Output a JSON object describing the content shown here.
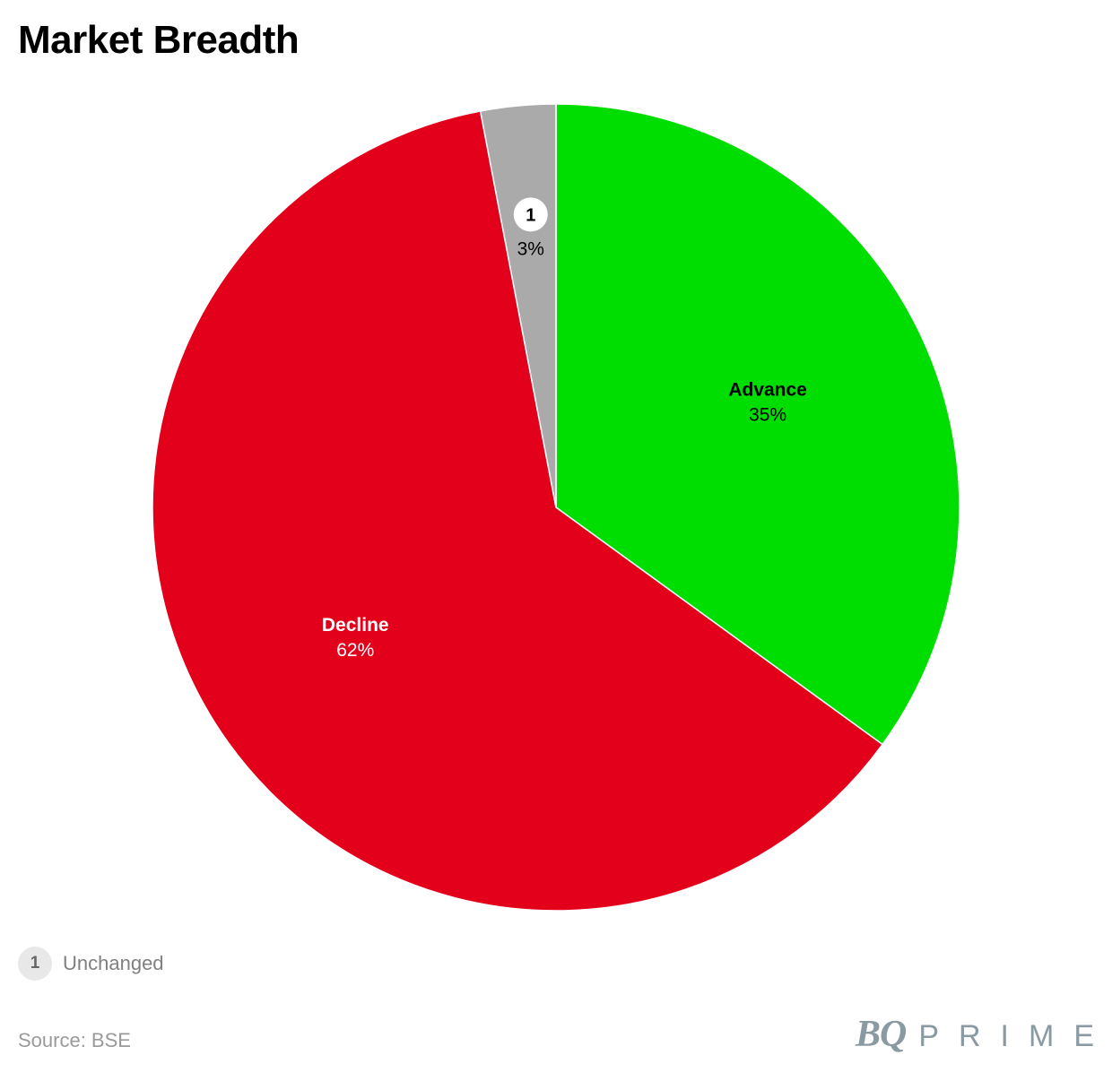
{
  "title": "Market Breadth",
  "chart_data": {
    "type": "pie",
    "title": "Market Breadth",
    "start_angle_deg": 0,
    "direction": "clockwise",
    "slices": [
      {
        "name": "Advance",
        "value": 35,
        "value_label": "35%",
        "color": "#00dd00",
        "label_color": "#000000",
        "label": "Advance"
      },
      {
        "name": "Decline",
        "value": 62,
        "value_label": "62%",
        "color": "#e3001b",
        "label_color": "#ffffff",
        "label": "Decline"
      },
      {
        "name": "Unchanged",
        "value": 3,
        "value_label": "3%",
        "color": "#aaaaaa",
        "label_color": "#000000",
        "marker": "1"
      }
    ]
  },
  "footnote": {
    "marker": "1",
    "text": "Unchanged"
  },
  "source": "Source: BSE",
  "logo": {
    "mark": "BQ",
    "word": "PRIME"
  },
  "colors": {
    "title": "#000000",
    "muted_text": "#9a9a9a",
    "logo": "#8a9aa3"
  }
}
